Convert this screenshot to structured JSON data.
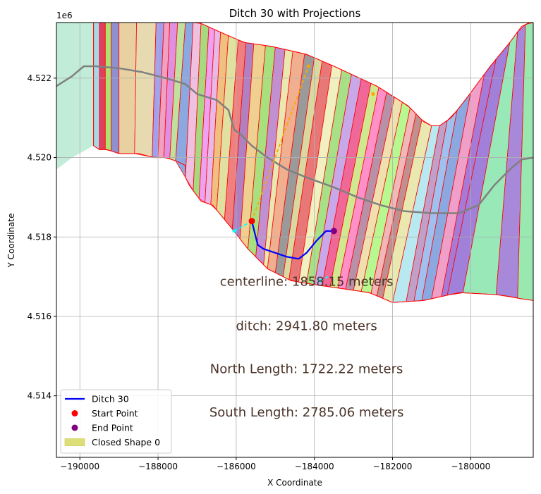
{
  "chart_data": {
    "type": "line",
    "title": "Ditch 30 with Projections",
    "xlabel": "X Coordinate",
    "ylabel": "Y Coordinate",
    "y_offset_label": "1e6",
    "xlim": [
      -190600,
      -178400
    ],
    "ylim": [
      4.51245,
      4.5234
    ],
    "grid": true,
    "x_ticks": [
      {
        "value": -190000,
        "label": "−190000"
      },
      {
        "value": -188000,
        "label": "−188000"
      },
      {
        "value": -186000,
        "label": "−186000"
      },
      {
        "value": -184000,
        "label": "−184000"
      },
      {
        "value": -182000,
        "label": "−182000"
      },
      {
        "value": -180000,
        "label": "−180000"
      }
    ],
    "y_ticks": [
      {
        "value": 4.514,
        "label": "4.514"
      },
      {
        "value": 4.516,
        "label": "4.516"
      },
      {
        "value": 4.518,
        "label": "4.518"
      },
      {
        "value": 4.52,
        "label": "4.520"
      },
      {
        "value": 4.522,
        "label": "4.522"
      }
    ],
    "ditch": {
      "name": "Ditch 30",
      "color": "#0000ff",
      "x": [
        -185600,
        -185450,
        -185300,
        -185000,
        -184700,
        -184400,
        -184200,
        -183950,
        -183700,
        -183500
      ],
      "y": [
        4.5184,
        4.5178,
        4.5177,
        4.5176,
        4.5175,
        4.51745,
        4.5176,
        4.5179,
        4.51815,
        4.51815
      ]
    },
    "centerline": {
      "color": "#808080",
      "x": [
        -190600,
        -190200,
        -189900,
        -189600,
        -189000,
        -188400,
        -187800,
        -187300,
        -187000,
        -186500,
        -186200,
        -186050,
        -185900,
        -185600,
        -185200,
        -184700,
        -184200,
        -183500,
        -182900,
        -182300,
        -181700,
        -181000,
        -180300,
        -179800,
        -179400,
        -179000,
        -178700,
        -178400
      ],
      "y": [
        4.5218,
        4.52205,
        4.5223,
        4.5223,
        4.52225,
        4.52215,
        4.522,
        4.52185,
        4.5216,
        4.52145,
        4.5212,
        4.5207,
        4.5206,
        4.5203,
        4.52,
        4.5197,
        4.5195,
        4.51925,
        4.519,
        4.5188,
        4.51865,
        4.5186,
        4.5186,
        4.5188,
        4.5193,
        4.5197,
        4.51995,
        4.52
      ]
    },
    "projections": [
      {
        "color": "#ffa500",
        "x": [
          -185600,
          -184150
        ],
        "y": [
          4.5184,
          4.5223
        ]
      },
      {
        "color": "#00ffff",
        "x": [
          -186050,
          -185600
        ],
        "y": [
          4.51815,
          4.5184
        ]
      },
      {
        "color": "#00ffff",
        "x": [
          -183850,
          -183650
        ],
        "y": [
          4.5169,
          4.517
        ]
      }
    ],
    "start_point": {
      "name": "Start Point",
      "x": -185600,
      "y": 4.5184,
      "color": "#ff0000"
    },
    "end_point": {
      "name": "End Point",
      "x": -183500,
      "y": 4.51815,
      "color": "#800080"
    },
    "projection_dots": [
      {
        "x": -184150,
        "y": 4.5223,
        "color": "#ffa500"
      },
      {
        "x": -182500,
        "y": 4.5216,
        "color": "#ffa500"
      },
      {
        "x": -186050,
        "y": 4.51815,
        "color": "#00ffff"
      },
      {
        "x": -183850,
        "y": 4.5169,
        "color": "#00ffff"
      }
    ],
    "shape": {
      "name": "Closed Shape 0",
      "legend_color": "#d8d860",
      "outline_color": "#ff0000",
      "top_edge": [
        [
          -189650,
          4.5234
        ],
        [
          -186950,
          4.5234
        ],
        [
          -186500,
          4.5232
        ],
        [
          -185800,
          4.5229
        ],
        [
          -185100,
          4.5228
        ],
        [
          -184200,
          4.5226
        ],
        [
          -183500,
          4.5223
        ],
        [
          -182400,
          4.5218
        ],
        [
          -181600,
          4.5213
        ],
        [
          -181200,
          4.5209
        ],
        [
          -181000,
          4.5208
        ],
        [
          -180800,
          4.5208
        ],
        [
          -180500,
          4.521
        ],
        [
          -180100,
          4.5215
        ],
        [
          -179500,
          4.5223
        ],
        [
          -179000,
          4.5229
        ],
        [
          -178700,
          4.5233
        ],
        [
          -178500,
          4.5234
        ],
        [
          -178400,
          4.5234
        ]
      ],
      "bottom_edge": [
        [
          -178400,
          4.5164
        ],
        [
          -178750,
          4.51645
        ],
        [
          -179000,
          4.5165
        ],
        [
          -179350,
          4.51655
        ],
        [
          -180300,
          4.5166
        ],
        [
          -181200,
          4.5164
        ],
        [
          -182000,
          4.51635
        ],
        [
          -182600,
          4.5166
        ],
        [
          -183300,
          4.5167
        ],
        [
          -184000,
          4.5168
        ],
        [
          -184600,
          4.5169
        ],
        [
          -185200,
          4.5172
        ],
        [
          -185700,
          4.5177
        ],
        [
          -186100,
          4.5182
        ],
        [
          -186600,
          4.5188
        ],
        [
          -186900,
          4.5189
        ],
        [
          -187050,
          4.5191
        ],
        [
          -187200,
          4.5193
        ],
        [
          -187300,
          4.5195
        ],
        [
          -187300,
          4.5198
        ],
        [
          -187500,
          4.5199
        ],
        [
          -187800,
          4.52
        ],
        [
          -188100,
          4.52
        ],
        [
          -188500,
          4.5201
        ],
        [
          -189000,
          4.5201
        ],
        [
          -189300,
          4.5202
        ],
        [
          -189500,
          4.5202
        ],
        [
          -189650,
          4.5203
        ]
      ],
      "strip_bottom": [
        -189650,
        -189500,
        -189350,
        -189200,
        -189000,
        -188600,
        -188150,
        -188000,
        -187850,
        -187700,
        -187550,
        -187300,
        -187100,
        -186950,
        -186800,
        -186650,
        -186500,
        -186300,
        -186100,
        -185900,
        -185700,
        -185500,
        -185300,
        -185200,
        -185000,
        -184800,
        -184650,
        -184400,
        -184200,
        -184000,
        -183800,
        -183600,
        -183400,
        -183200,
        -183000,
        -182800,
        -182550,
        -182400,
        -182250,
        -182000,
        -181650,
        -181450,
        -181250,
        -181000,
        -180750,
        -180600,
        -180200,
        -179350,
        -178800,
        -178400
      ],
      "strip_top": [
        -189650,
        -189500,
        -189350,
        -189200,
        -189000,
        -188550,
        -188050,
        -187850,
        -187700,
        -187500,
        -187300,
        -187100,
        -186900,
        -186700,
        -186550,
        -186400,
        -186200,
        -185950,
        -185750,
        -185550,
        -185250,
        -185000,
        -184750,
        -184550,
        -184250,
        -184000,
        -183800,
        -183550,
        -183300,
        -183050,
        -182800,
        -182550,
        -182350,
        -182150,
        -181950,
        -181750,
        -181550,
        -181400,
        -181250,
        -181000,
        -180800,
        -180600,
        -180350,
        -180000,
        -179650,
        -179350,
        -179000,
        -178800,
        -178600,
        -178400
      ],
      "strip_colors": [
        "#a8d8e8",
        "#e04060",
        "#b0e070",
        "#9090d0",
        "#e8d0a0",
        "#e8dab0",
        "#a0a0f0",
        "#f0a0c0",
        "#e090e0",
        "#c0e0a0",
        "#8ca8e0",
        "#f0c0e0",
        "#a8d880",
        "#f0a0f0",
        "#e8b8e8",
        "#f0c080",
        "#e0e0a0",
        "#f08080",
        "#b080c0",
        "#f0d090",
        "#a8e080",
        "#c090d0",
        "#e8e8b0",
        "#f0b090",
        "#9a9a9a",
        "#d8d8a0",
        "#e87878",
        "#f0f0c0",
        "#a8e088",
        "#c8a8e8",
        "#f06898",
        "#d0e890",
        "#ff90c8",
        "#b890a8",
        "#f0e0b0",
        "#b8f890",
        "#f0b8b8",
        "#c09090",
        "#e8e8b0",
        "#b8e8f0",
        "#c0a0c8",
        "#a0c0f0",
        "#8ca8e0",
        "#f0a0c8",
        "#a87ad8",
        "#a080d8",
        "#98e8b8",
        "#a888d8",
        "#98e8b0"
      ]
    },
    "left_region_color": "#c0ecd8",
    "annotations": [
      {
        "text": "centerline: 1858.15 meters",
        "x": -184200,
        "y": 4.51677
      },
      {
        "text": "ditch: 2941.80 meters",
        "x": -184200,
        "y": 4.51565
      },
      {
        "text": "North Length: 1722.22 meters",
        "x": -184200,
        "y": 4.51457
      },
      {
        "text": "South Length: 2785.06 meters",
        "x": -184200,
        "y": 4.51348
      }
    ],
    "annotation_color": "#4a3328",
    "legend": {
      "placement": "lower-left",
      "entries": [
        {
          "label": "Ditch 30",
          "kind": "line",
          "color": "#0000ff"
        },
        {
          "label": "Start Point",
          "kind": "dot",
          "color": "#ff0000"
        },
        {
          "label": "End Point",
          "kind": "dot",
          "color": "#800080"
        },
        {
          "label": "Closed Shape 0",
          "kind": "patch",
          "color": "#d8d860"
        }
      ]
    }
  }
}
